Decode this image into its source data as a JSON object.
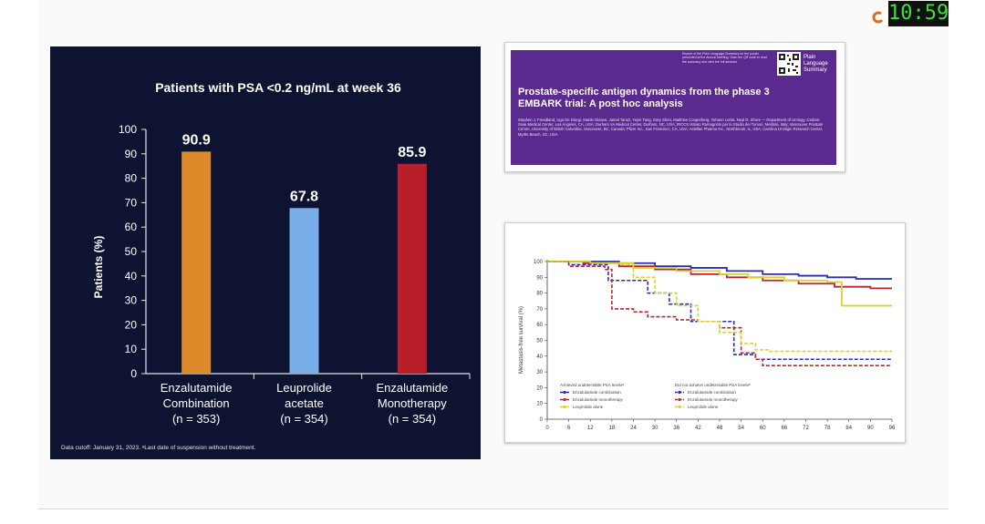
{
  "clock": {
    "time": "10:59"
  },
  "bar_chart": {
    "title": "Patients with PSA <0.2 ng/mL at week 36",
    "ylabel": "Patients (%)",
    "footnote": "Data cutoff: January 31, 2023. ᵃLast date of suspension without treatment."
  },
  "chart_data": [
    {
      "type": "bar",
      "title": "Patients with PSA <0.2 ng/mL at week 36",
      "ylabel": "Patients (%)",
      "ylim": [
        0,
        100
      ],
      "yticks": [
        0,
        10,
        20,
        30,
        40,
        50,
        60,
        70,
        80,
        90,
        100
      ],
      "categories": [
        [
          "Enzalutamide",
          "Combination",
          "(n = 353)"
        ],
        [
          "Leuprolide",
          "acetate",
          "(n = 354)"
        ],
        [
          "Enzalutamide",
          "Monotherapy",
          "(n = 354)"
        ]
      ],
      "values": [
        90.9,
        67.8,
        85.9
      ],
      "value_labels": [
        "90.9",
        "67.8",
        "85.9"
      ],
      "colors": [
        "#dd8a2a",
        "#7aaeea",
        "#b81f2a"
      ]
    },
    {
      "type": "line",
      "ylabel": "Metastasis-free survival (%)",
      "xticks": [
        0,
        6,
        12,
        18,
        24,
        30,
        36,
        42,
        48,
        54,
        60,
        66,
        72,
        78,
        84,
        90,
        96
      ],
      "yticks": [
        0,
        10,
        20,
        30,
        40,
        50,
        60,
        70,
        80,
        90,
        100
      ],
      "xlim": [
        0,
        96
      ],
      "ylim": [
        0,
        100
      ],
      "legend": {
        "group1_title": "Achieved undetectable PSA levelsᵃ",
        "group2_title": "Did not achieve undetectable PSA levelsᵃ"
      },
      "series": [
        {
          "name": "Enzalutamide combination",
          "color": "#2a2ea8",
          "dashed": false,
          "x": [
            0,
            12,
            20,
            30,
            40,
            50,
            60,
            70,
            78,
            86,
            96
          ],
          "y": [
            100,
            100,
            99,
            97,
            96,
            94,
            92,
            91,
            90,
            89,
            89
          ]
        },
        {
          "name": "Enzalutamide monotherapy",
          "color": "#b8262b",
          "dashed": false,
          "x": [
            0,
            10,
            20,
            30,
            40,
            50,
            60,
            70,
            80,
            90,
            96
          ],
          "y": [
            100,
            99,
            97,
            95,
            92,
            90,
            88,
            86,
            84,
            83,
            83
          ]
        },
        {
          "name": "Leuprolide alone",
          "color": "#ddd030",
          "dashed": false,
          "x": [
            0,
            12,
            24,
            36,
            48,
            56,
            66,
            78,
            82,
            90,
            96
          ],
          "y": [
            100,
            99,
            96,
            94,
            92,
            90,
            88,
            87,
            72,
            72,
            72
          ]
        },
        {
          "name": "Enzalutamide combination",
          "color": "#2a2ea8",
          "dashed": true,
          "x": [
            0,
            6,
            16,
            17,
            24,
            28,
            34,
            40,
            48,
            52,
            58,
            60,
            66,
            96
          ],
          "y": [
            100,
            98,
            98,
            88,
            88,
            80,
            73,
            62,
            62,
            41,
            38,
            38,
            38,
            38
          ]
        },
        {
          "name": "Enzalutamide monotherapy",
          "color": "#b8262b",
          "dashed": true,
          "x": [
            0,
            6,
            16,
            18,
            24,
            28,
            36,
            42,
            48,
            54,
            58,
            60,
            96
          ],
          "y": [
            100,
            97,
            95,
            70,
            68,
            65,
            63,
            62,
            58,
            42,
            38,
            34,
            34
          ]
        },
        {
          "name": "Leuprolide alone",
          "color": "#ddd030",
          "dashed": true,
          "x": [
            0,
            12,
            20,
            24,
            30,
            36,
            42,
            48,
            54,
            58,
            62,
            96
          ],
          "y": [
            100,
            99,
            98,
            90,
            80,
            72,
            62,
            55,
            48,
            44,
            43,
            43
          ]
        }
      ]
    }
  ],
  "paper": {
    "title": "Prostate-specific antigen dynamics from the phase 3 EMBARK trial: A post hoc analysis",
    "authors": "Stephen J. Freedland, Ugo De Giorgi, Martin Gleave, Jamal Tarazi, Yeyin Tang, Gary Shen, Matthew Cooperberg, Yohann Loriot, Neal D. Shore — Department of Urology, Cedars-Sinai Medical Center, Los Angeles, CA, USA; Durham VA Medical Center, Durham, NC, USA; IRCCS Istituto Romagnolo per lo Studio dei Tumori, Meldola, Italy; Vancouver Prostate Centre, University of British Columbia, Vancouver, BC, Canada; Pfizer Inc., San Francisco, CA, USA; Astellas Pharma Inc., Northbrook, IL, USA; Carolina Urologic Research Center, Myrtle Beach, SC, USA",
    "header_text": "Reprint of the Plain Language Summary for the poster presented at the Annual Meeting. Scan the QR code to read the summary and view the full abstract.",
    "badge": [
      "Plain",
      "Language",
      "Summary"
    ]
  }
}
